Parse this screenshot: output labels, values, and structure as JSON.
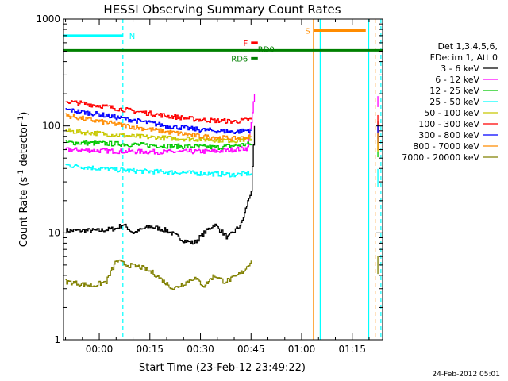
{
  "chart_data": {
    "type": "line",
    "title": "HESSI Observing Summary Count Rates",
    "xlabel": "Start Time (23-Feb-12 23:49:22)",
    "ylabel": "Count Rate (s⁻¹ detector⁻¹)",
    "y_scale": "log",
    "ylim": [
      1,
      1000
    ],
    "xlim_minutes": [
      -10.6,
      84
    ],
    "x_ticks": [
      {
        "label": "00:00",
        "t": 0
      },
      {
        "label": "00:15",
        "t": 15
      },
      {
        "label": "00:30",
        "t": 30
      },
      {
        "label": "00:45",
        "t": 45
      },
      {
        "label": "01:00",
        "t": 60
      },
      {
        "label": "01:15",
        "t": 75
      }
    ],
    "y_ticks": [
      {
        "label": "1",
        "value": 1
      },
      {
        "label": "10",
        "value": 10
      },
      {
        "label": "100",
        "value": 100
      },
      {
        "label": "1000",
        "value": 1000
      }
    ],
    "legend_header": [
      "Det 1,3,4,5,6,",
      "FDecim 1, Att 0"
    ],
    "legend_position": "right",
    "series": [
      {
        "name": "3 - 6 keV",
        "color": "#000000",
        "x": [
          -10,
          -5,
          0,
          5,
          7,
          10,
          15,
          20,
          25,
          28,
          31,
          34,
          38,
          42,
          45,
          46
        ],
        "values": [
          10.5,
          10.5,
          10.5,
          11,
          12,
          10,
          11.5,
          10.5,
          8.5,
          8,
          10,
          12,
          9,
          12,
          25,
          100
        ]
      },
      {
        "name": "6 - 12 keV",
        "color": "#ff00ff",
        "x": [
          -10,
          5,
          20,
          35,
          44,
          46
        ],
        "values": [
          60,
          58,
          57,
          58,
          62,
          200
        ]
      },
      {
        "name": "12 - 25 keV",
        "color": "#00c800",
        "x": [
          -10,
          5,
          20,
          35,
          45
        ],
        "values": [
          70,
          68,
          65,
          63,
          68
        ]
      },
      {
        "name": "25 - 50 keV",
        "color": "#00ffff",
        "x": [
          -10,
          0,
          10,
          20,
          30,
          40,
          45
        ],
        "values": [
          43,
          40,
          38,
          37,
          36,
          35,
          36
        ]
      },
      {
        "name": "50 - 100 keV",
        "color": "#c8c800",
        "x": [
          -10,
          0,
          10,
          20,
          30,
          40,
          45
        ],
        "values": [
          90,
          85,
          80,
          77,
          75,
          73,
          76
        ]
      },
      {
        "name": "100 - 300 keV",
        "color": "#ff0000",
        "x": [
          -10,
          0,
          10,
          20,
          30,
          40,
          45
        ],
        "values": [
          170,
          155,
          138,
          124,
          114,
          110,
          115
        ]
      },
      {
        "name": "300 - 800 keV",
        "color": "#0000ff",
        "x": [
          -10,
          0,
          10,
          20,
          30,
          40,
          45
        ],
        "values": [
          142,
          128,
          113,
          100,
          92,
          88,
          92
        ]
      },
      {
        "name": "800 - 7000 keV",
        "color": "#ff8c00",
        "x": [
          -10,
          0,
          10,
          20,
          30,
          40,
          45
        ],
        "values": [
          125,
          110,
          98,
          88,
          80,
          76,
          79
        ]
      },
      {
        "name": "7000 - 20000 keV",
        "color": "#808000",
        "x": [
          -10,
          -2,
          2,
          5,
          8,
          12,
          16,
          19,
          22,
          26,
          28,
          31,
          34,
          37,
          40,
          43,
          45
        ],
        "values": [
          3.5,
          3.2,
          3.5,
          5.5,
          5.0,
          4.8,
          4.2,
          3.5,
          3.0,
          3.5,
          3.8,
          3.2,
          4.0,
          3.5,
          3.8,
          4.5,
          5.5
        ]
      }
    ],
    "markers": [
      {
        "label": "N",
        "color": "#00ffff",
        "y": 700,
        "x_from": -10.6,
        "x_to": 7
      },
      {
        "label": "S",
        "color": "#ff8c00",
        "y": 780,
        "x_from": 63.5,
        "x_to": 79
      },
      {
        "label": "F",
        "color": "#ff0000",
        "y": 600,
        "x_from": 45,
        "x_to": 47
      },
      {
        "label": "RD0",
        "color": "#008000",
        "y": 510,
        "x_from": -10.6,
        "x_to": 84
      },
      {
        "label": "RD6",
        "color": "#008000",
        "y": 430,
        "x_from": 45,
        "x_to": 47
      }
    ],
    "night_bands": [
      {
        "color": "#00ffff",
        "x_from": 79.8,
        "x_to": 84
      }
    ],
    "vlines": [
      {
        "t": 7,
        "color": "#00ffff",
        "style": "dashed"
      },
      {
        "t": 63.5,
        "color": "#ff8c00",
        "style": "solid"
      },
      {
        "t": 65.5,
        "color": "#00ffff",
        "style": "solid"
      },
      {
        "t": 81.8,
        "color": "#ff8c00",
        "style": "dashed"
      },
      {
        "t": 83.5,
        "color": "#00ffff",
        "style": "dashed"
      }
    ],
    "footer_date": "24-Feb-2012 05:01"
  }
}
